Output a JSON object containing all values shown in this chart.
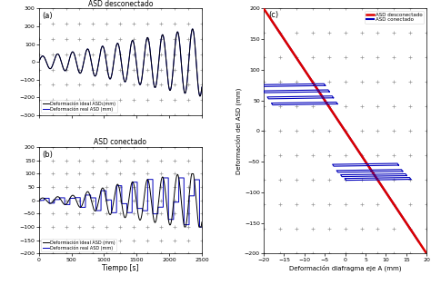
{
  "title_a": "ASD desconectado",
  "title_b": "ASD conectado",
  "xlabel_ab": "Tiempo [s]",
  "ylabel_c": "Deformación del ASD (mm)",
  "xlabel_c": "Deformación diafragma eje A (mm)",
  "legend_a1": "Deformación ideal ASD₁(mm)",
  "legend_a2": "Deformación real ASD (mm)",
  "legend_b1": "Deformación ideal ASD (mm)",
  "legend_b2": "Deformación real ASD (mm)",
  "legend_c1": "ASD desconectado",
  "legend_c2": "ASD conectado",
  "panel_labels": [
    "(a)",
    "(b)",
    "(c)"
  ],
  "color_ideal": "#000000",
  "color_real": "#0000bb",
  "color_disconnected": "#dd0000",
  "color_connected": "#0000bb",
  "dot_color": "#999999",
  "ylim_a": [
    -300,
    300
  ],
  "ylim_b": [
    -200,
    200
  ],
  "xlim_ab": [
    0,
    2500
  ],
  "ylim_c": [
    -200,
    200
  ],
  "xlim_c": [
    -20,
    20
  ]
}
